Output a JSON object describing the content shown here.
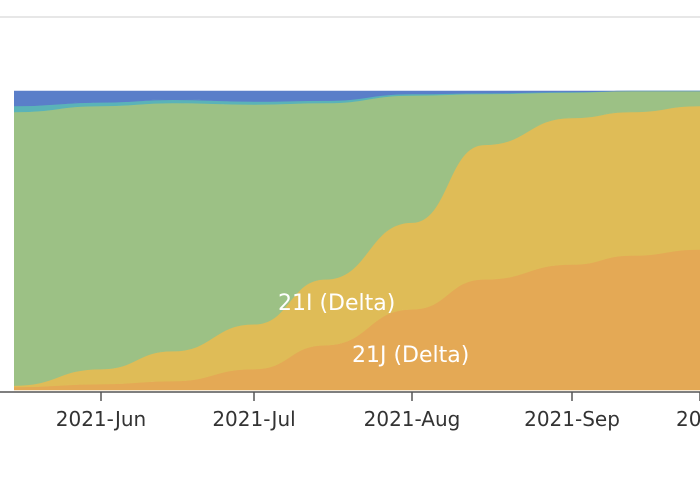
{
  "chart_data": {
    "type": "area",
    "stacked": true,
    "normalized": true,
    "title": "",
    "xlabel": "",
    "ylabel": "",
    "x_tick_labels": [
      "2021-Jun",
      "2021-Jul",
      "2021-Aug",
      "2021-Sep",
      "20"
    ],
    "x": [
      "2021-05-15",
      "2021-06-01",
      "2021-06-15",
      "2021-07-01",
      "2021-07-15",
      "2021-08-01",
      "2021-08-15",
      "2021-09-01",
      "2021-09-15",
      "2021-10-01",
      "2021-10-10"
    ],
    "ylim": [
      0,
      1
    ],
    "grid": false,
    "series": [
      {
        "name": "21J (Delta)",
        "color": "#e4a955",
        "values": [
          0.01,
          0.02,
          0.03,
          0.07,
          0.15,
          0.27,
          0.37,
          0.42,
          0.45,
          0.47,
          0.48
        ]
      },
      {
        "name": "21I (Delta)",
        "color": "#dfbc57",
        "values": [
          0.005,
          0.05,
          0.1,
          0.15,
          0.22,
          0.29,
          0.45,
          0.49,
          0.48,
          0.48,
          0.48
        ]
      },
      {
        "name": "",
        "color": "#9cc185",
        "values": [
          0.915,
          0.88,
          0.83,
          0.735,
          0.59,
          0.425,
          0.17,
          0.085,
          0.07,
          0.05,
          0.04
        ]
      },
      {
        "name": "",
        "color": "#5ab3b8",
        "values": [
          0.02,
          0.012,
          0.011,
          0.01,
          0.008,
          0.005,
          0.003,
          0.002,
          0.0,
          0.0,
          0.0
        ]
      },
      {
        "name": "",
        "color": "#5a7ec9",
        "values": [
          0.05,
          0.038,
          0.029,
          0.035,
          0.032,
          0.01,
          0.007,
          0.003,
          0.0,
          0.0,
          0.0
        ]
      }
    ],
    "area_labels": [
      "21I (Delta)",
      "21J (Delta)"
    ]
  }
}
